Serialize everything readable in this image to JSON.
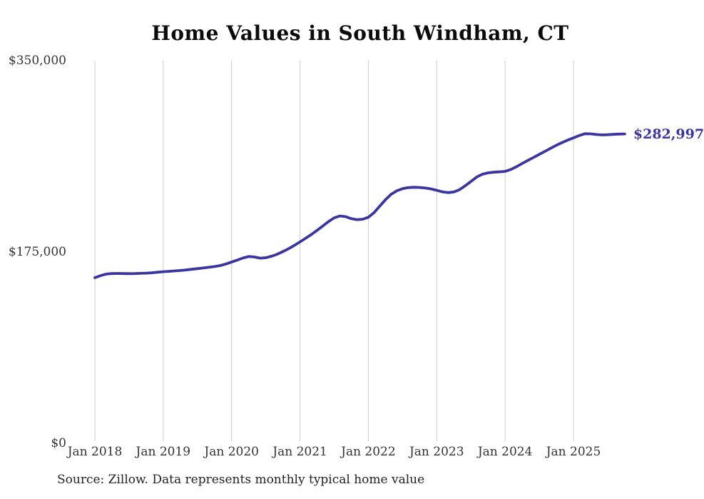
{
  "title": "Home Values in South Windham, CT",
  "source_note": "Source: Zillow. Data represents monthly typical home value",
  "end_label": "$282,997",
  "colors": {
    "line": "#3a35a0",
    "grid": "#cccccc",
    "tick_text": "#333333",
    "title_text": "#0b0b0b"
  },
  "chart_data": {
    "type": "line",
    "title": "Home Values in South Windham, CT",
    "xlabel": "",
    "ylabel": "",
    "ylim": [
      0,
      350000
    ],
    "grid": "vertical-only",
    "legend": "none",
    "x_ticks": [
      "Jan 2018",
      "Jan 2019",
      "Jan 2020",
      "Jan 2021",
      "Jan 2022",
      "Jan 2023",
      "Jan 2024",
      "Jan 2025"
    ],
    "y_ticks": [
      {
        "label": "$350,000",
        "value": 350000
      },
      {
        "label": "$175,000",
        "value": 175000
      },
      {
        "label": "$0",
        "value": 0
      }
    ],
    "series": [
      {
        "name": "Monthly typical home value",
        "start_month": "Jan 2018",
        "end_month": "Oct 2025",
        "frequency": "monthly",
        "last_value_label": "$282,997",
        "values": [
          151500,
          153400,
          154800,
          155300,
          155400,
          155300,
          155200,
          155300,
          155500,
          155700,
          156000,
          156500,
          157000,
          157300,
          157700,
          158100,
          158600,
          159200,
          159800,
          160400,
          161000,
          161700,
          162600,
          164000,
          165800,
          167600,
          169500,
          170900,
          170400,
          169400,
          169800,
          171100,
          173000,
          175400,
          178000,
          181000,
          184300,
          187600,
          191000,
          194800,
          198800,
          202800,
          206200,
          208000,
          207300,
          205500,
          204600,
          205000,
          206800,
          211000,
          217000,
          222800,
          227800,
          231000,
          232900,
          233900,
          234200,
          234000,
          233500,
          232700,
          231400,
          230000,
          229300,
          229900,
          232000,
          235500,
          239500,
          243500,
          246100,
          247400,
          248000,
          248300,
          248700,
          250500,
          253000,
          256000,
          258800,
          261500,
          264300,
          267100,
          269900,
          272600,
          275100,
          277400,
          279400,
          281500,
          283200,
          283100,
          282500,
          282100,
          282300,
          282600,
          282900,
          282997
        ]
      }
    ]
  }
}
